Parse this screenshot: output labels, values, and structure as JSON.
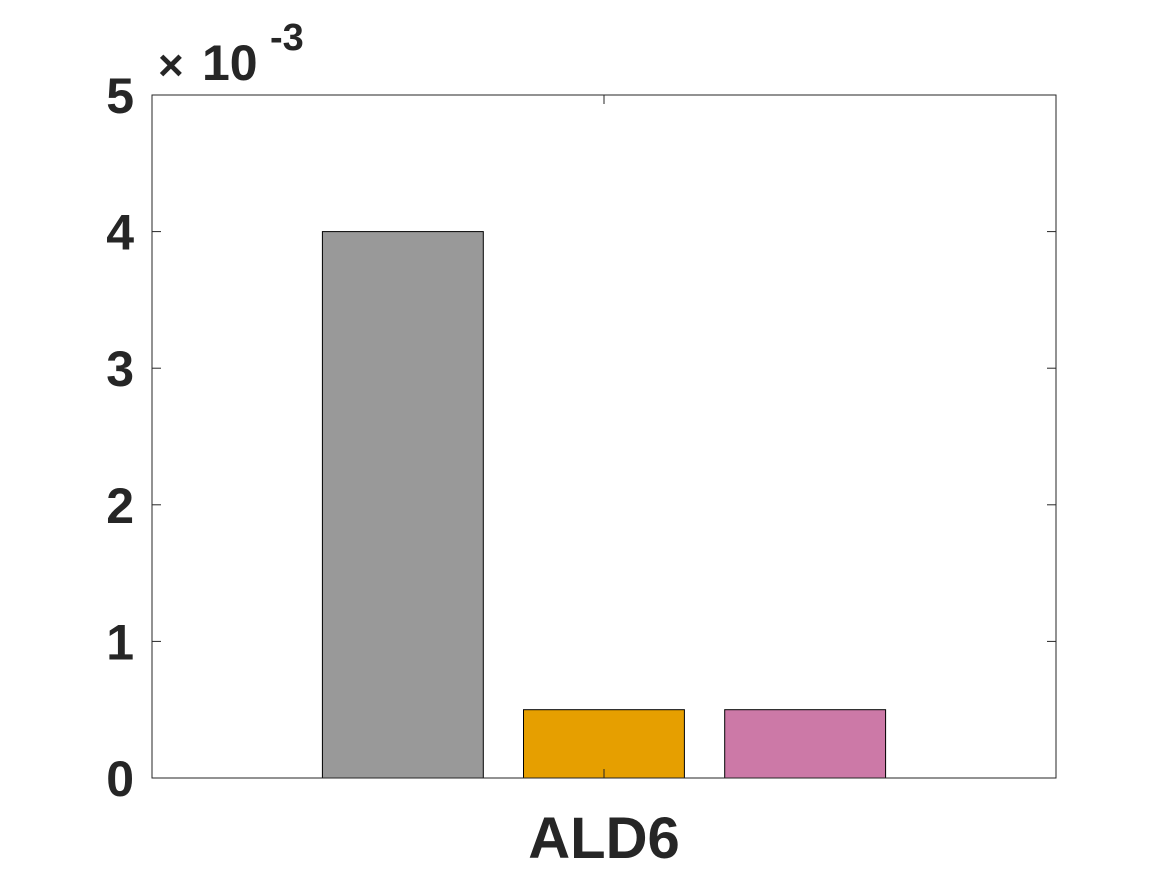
{
  "chart_data": {
    "type": "bar",
    "categories": [
      "ALD6"
    ],
    "series": [
      {
        "values": [
          0.004
        ],
        "color": "#999999"
      },
      {
        "values": [
          0.0005
        ],
        "color": "#e69f00"
      },
      {
        "values": [
          0.0005
        ],
        "color": "#cc79a7"
      }
    ],
    "ylim": [
      0,
      0.005
    ],
    "yticks": [
      0,
      0.001,
      0.002,
      0.003,
      0.004,
      0.005
    ],
    "ytick_labels": [
      "0",
      "1",
      "2",
      "3",
      "4",
      "5"
    ],
    "y_exponent": {
      "times": "×",
      "base": "10",
      "power": "-3"
    },
    "grid": false,
    "legend": "none"
  }
}
